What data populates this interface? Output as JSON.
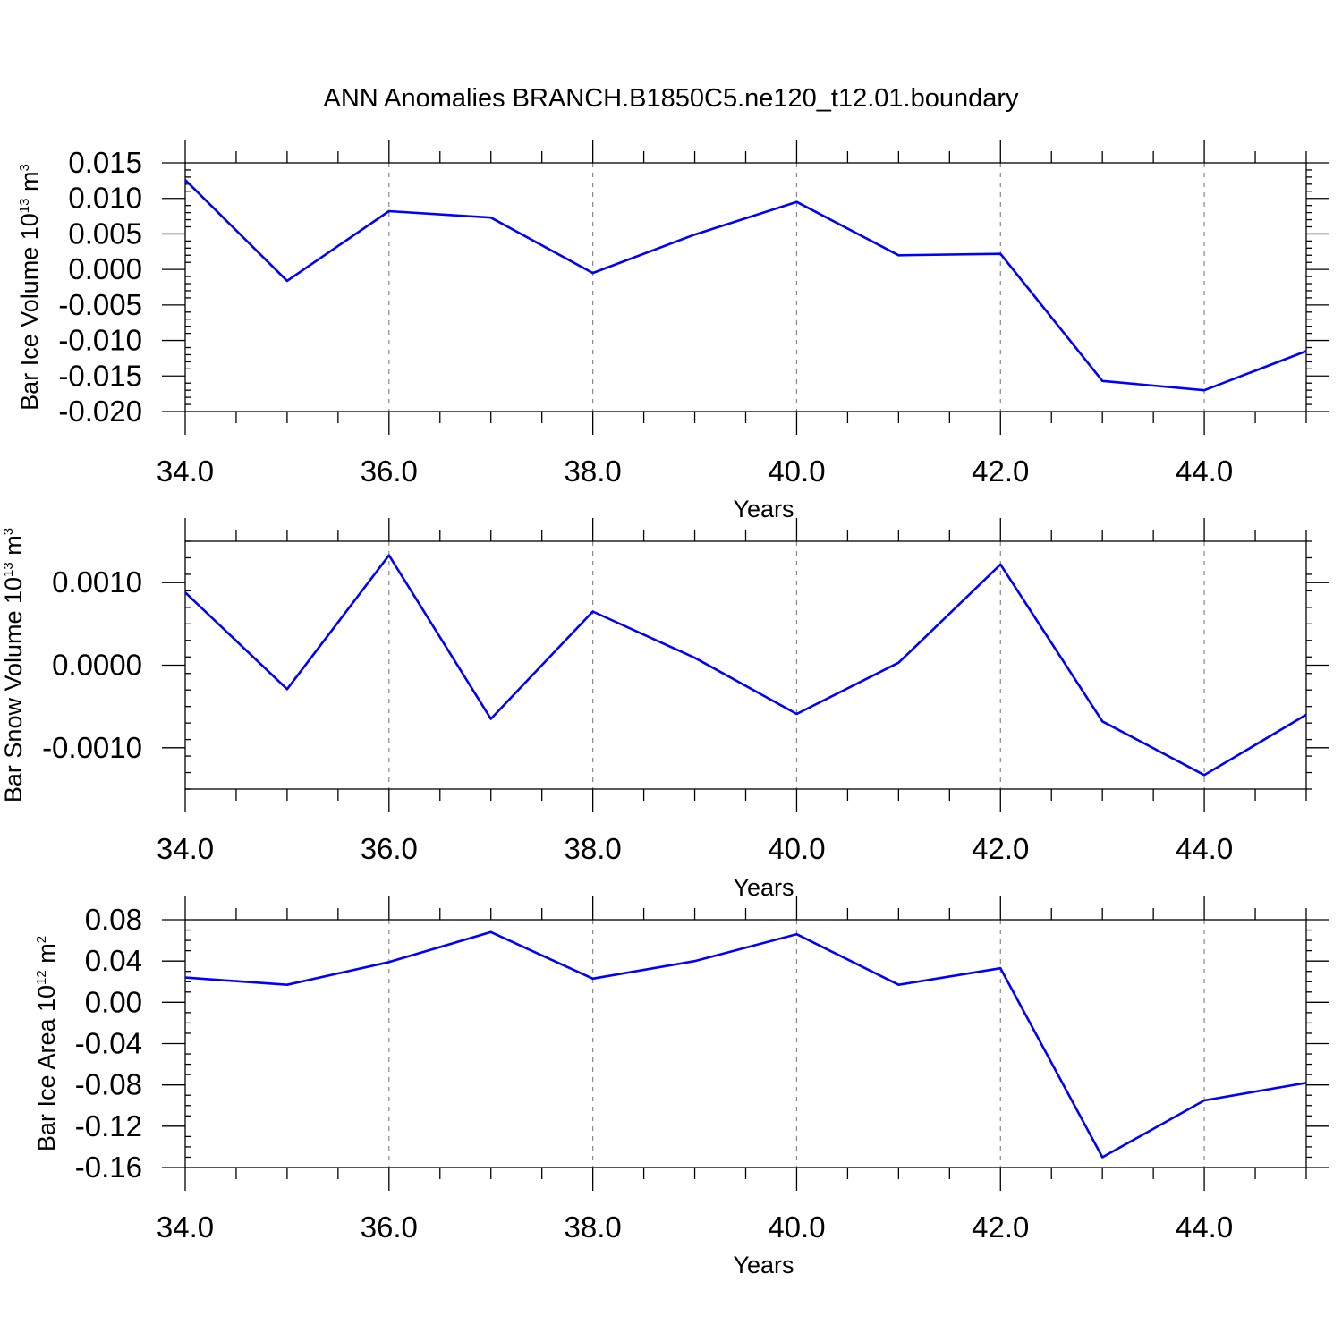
{
  "title": "ANN Anomalies BRANCH.B1850C5.ne120_t12.01.boundary",
  "colors": {
    "line": "#0000ff",
    "grid": "#888888",
    "axes": "#000000"
  },
  "chart_data": [
    {
      "type": "line",
      "xlabel": "Years",
      "ylabel": {
        "base": "Bar Ice Volume 10",
        "exp": "13",
        "unit": " m",
        "unit_exp": "3"
      },
      "xlim": [
        34.0,
        45.0
      ],
      "ylim": [
        -0.02,
        0.015
      ],
      "x_ticks": [
        "34.0",
        "36.0",
        "38.0",
        "40.0",
        "42.0",
        "44.0"
      ],
      "x_tick_values": [
        34,
        36,
        38,
        40,
        42,
        44
      ],
      "y_ticks": [
        "0.015",
        "0.010",
        "0.005",
        "0.000",
        "-0.005",
        "-0.010",
        "-0.015",
        "-0.020"
      ],
      "y_tick_values": [
        0.015,
        0.01,
        0.005,
        0.0,
        -0.005,
        -0.01,
        -0.015,
        -0.02
      ],
      "y_minor_step": 0.001,
      "grid": "vertical dashed at major x ticks",
      "x": [
        34,
        35,
        36,
        37,
        38,
        39,
        40,
        41,
        42,
        43,
        44,
        45
      ],
      "y": [
        0.0126,
        -0.0016,
        0.0082,
        0.0073,
        -0.0005,
        0.0049,
        0.0095,
        0.002,
        0.0022,
        -0.0157,
        -0.017,
        -0.0115
      ]
    },
    {
      "type": "line",
      "xlabel": "Years",
      "ylabel": {
        "base": "Bar Snow Volume 10",
        "exp": "13",
        "unit": " m",
        "unit_exp": "3"
      },
      "xlim": [
        34.0,
        45.0
      ],
      "ylim": [
        -0.0015,
        0.0015
      ],
      "x_ticks": [
        "34.0",
        "36.0",
        "38.0",
        "40.0",
        "42.0",
        "44.0"
      ],
      "x_tick_values": [
        34,
        36,
        38,
        40,
        42,
        44
      ],
      "y_ticks": [
        "0.0010",
        "0.0000",
        "-0.0010"
      ],
      "y_tick_values": [
        0.001,
        0.0,
        -0.001
      ],
      "y_minor_step": 0.0002,
      "grid": "vertical dashed at major x ticks",
      "x": [
        34,
        35,
        36,
        37,
        38,
        39,
        40,
        41,
        42,
        43,
        44,
        45
      ],
      "y": [
        0.00088,
        -0.00029,
        0.00133,
        -0.00065,
        0.00065,
        9e-05,
        -0.00059,
        3e-05,
        0.00122,
        -0.00068,
        -0.00133,
        -0.0006
      ]
    },
    {
      "type": "line",
      "xlabel": "Years",
      "ylabel": {
        "base": "Bar Ice Area 10",
        "exp": "12",
        "unit": " m",
        "unit_exp": "2"
      },
      "xlim": [
        34.0,
        45.0
      ],
      "ylim": [
        -0.16,
        0.08
      ],
      "x_ticks": [
        "34.0",
        "36.0",
        "38.0",
        "40.0",
        "42.0",
        "44.0"
      ],
      "x_tick_values": [
        34,
        36,
        38,
        40,
        42,
        44
      ],
      "y_ticks": [
        "0.08",
        "0.04",
        "0.00",
        "-0.04",
        "-0.08",
        "-0.12",
        "-0.16"
      ],
      "y_tick_values": [
        0.08,
        0.04,
        0.0,
        -0.04,
        -0.08,
        -0.12,
        -0.16
      ],
      "y_minor_step": 0.01,
      "grid": "vertical dashed at major x ticks",
      "x": [
        34,
        35,
        36,
        37,
        38,
        39,
        40,
        41,
        42,
        43,
        44,
        45
      ],
      "y": [
        0.024,
        0.017,
        0.039,
        0.068,
        0.023,
        0.04,
        0.066,
        0.017,
        0.033,
        -0.15,
        -0.095,
        -0.078
      ]
    }
  ]
}
